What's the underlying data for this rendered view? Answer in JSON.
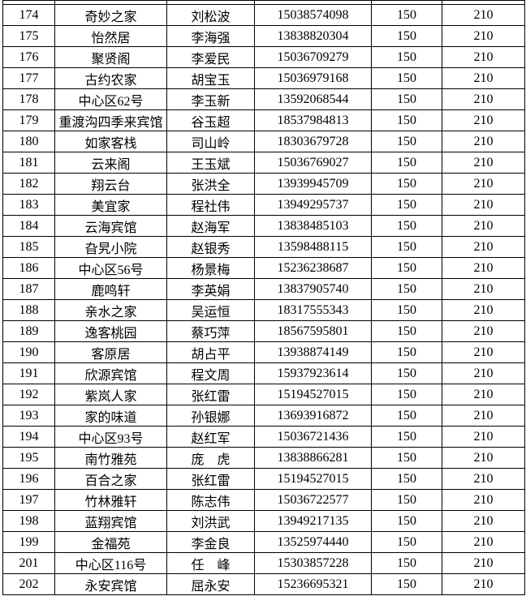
{
  "colors": {
    "background": "#ffffff",
    "grid_border": "#000000",
    "text": "#000000"
  },
  "table": {
    "columns": [
      {
        "key": "serial-number"
      },
      {
        "key": "guesthouse-name"
      },
      {
        "key": "contact-person"
      },
      {
        "key": "phone-number"
      },
      {
        "key": "price-150"
      },
      {
        "key": "price-210"
      }
    ],
    "rows": [
      [
        "174",
        "奇妙之家",
        "刘松波",
        "15038574098",
        "150",
        "210"
      ],
      [
        "175",
        "怡然居",
        "李海强",
        "13838820304",
        "150",
        "210"
      ],
      [
        "176",
        "聚贤阁",
        "李爱民",
        "15036709279",
        "150",
        "210"
      ],
      [
        "177",
        "古约农家",
        "胡宝玉",
        "15036979168",
        "150",
        "210"
      ],
      [
        "178",
        "中心区62号",
        "李玉新",
        "13592068544",
        "150",
        "210"
      ],
      [
        "179",
        "重渡沟四季来宾馆",
        "谷玉超",
        "18537984813",
        "150",
        "210"
      ],
      [
        "180",
        "如家客栈",
        "司山岭",
        "18303679728",
        "150",
        "210"
      ],
      [
        "181",
        "云来阁",
        "王玉斌",
        "15036769027",
        "150",
        "210"
      ],
      [
        "182",
        "翔云台",
        "张洪全",
        "13939945709",
        "150",
        "210"
      ],
      [
        "183",
        "美宜家",
        "程社伟",
        "13949295737",
        "150",
        "210"
      ],
      [
        "184",
        "云海宾馆",
        "赵海军",
        "13838485103",
        "150",
        "210"
      ],
      [
        "185",
        "旮旯小院",
        "赵银秀",
        "13598488115",
        "150",
        "210"
      ],
      [
        "186",
        "中心区56号",
        "杨景梅",
        "15236238687",
        "150",
        "210"
      ],
      [
        "187",
        "鹿鸣轩",
        "李英娟",
        "13837905740",
        "150",
        "210"
      ],
      [
        "188",
        "亲水之家",
        "吴运恒",
        "18317555343",
        "150",
        "210"
      ],
      [
        "189",
        "逸客桃园",
        "蔡巧萍",
        "18567595801",
        "150",
        "210"
      ],
      [
        "190",
        "客原居",
        "胡占平",
        "13938874149",
        "150",
        "210"
      ],
      [
        "191",
        "欣源宾馆",
        "程文周",
        "15937923614",
        "150",
        "210"
      ],
      [
        "192",
        "紫岚人家",
        "张红雷",
        "15194527015",
        "150",
        "210"
      ],
      [
        "193",
        "家的味道",
        "孙银娜",
        "13693916872",
        "150",
        "210"
      ],
      [
        "194",
        "中心区93号",
        "赵红军",
        "15036721436",
        "150",
        "210"
      ],
      [
        "195",
        "南竹雅苑",
        "庞　虎",
        "13838866281",
        "150",
        "210"
      ],
      [
        "196",
        "百合之家",
        "张红雷",
        "15194527015",
        "150",
        "210"
      ],
      [
        "197",
        "竹林雅轩",
        "陈志伟",
        "15036722577",
        "150",
        "210"
      ],
      [
        "198",
        "蓝翔宾馆",
        "刘洪武",
        "13949217135",
        "150",
        "210"
      ],
      [
        "199",
        "金福苑",
        "李金良",
        "13525974440",
        "150",
        "210"
      ],
      [
        "201",
        "中心区116号",
        "任　峰",
        "15303857228",
        "150",
        "210"
      ],
      [
        "202",
        "永安宾馆",
        "屈永安",
        "15236695321",
        "150",
        "210"
      ]
    ]
  }
}
